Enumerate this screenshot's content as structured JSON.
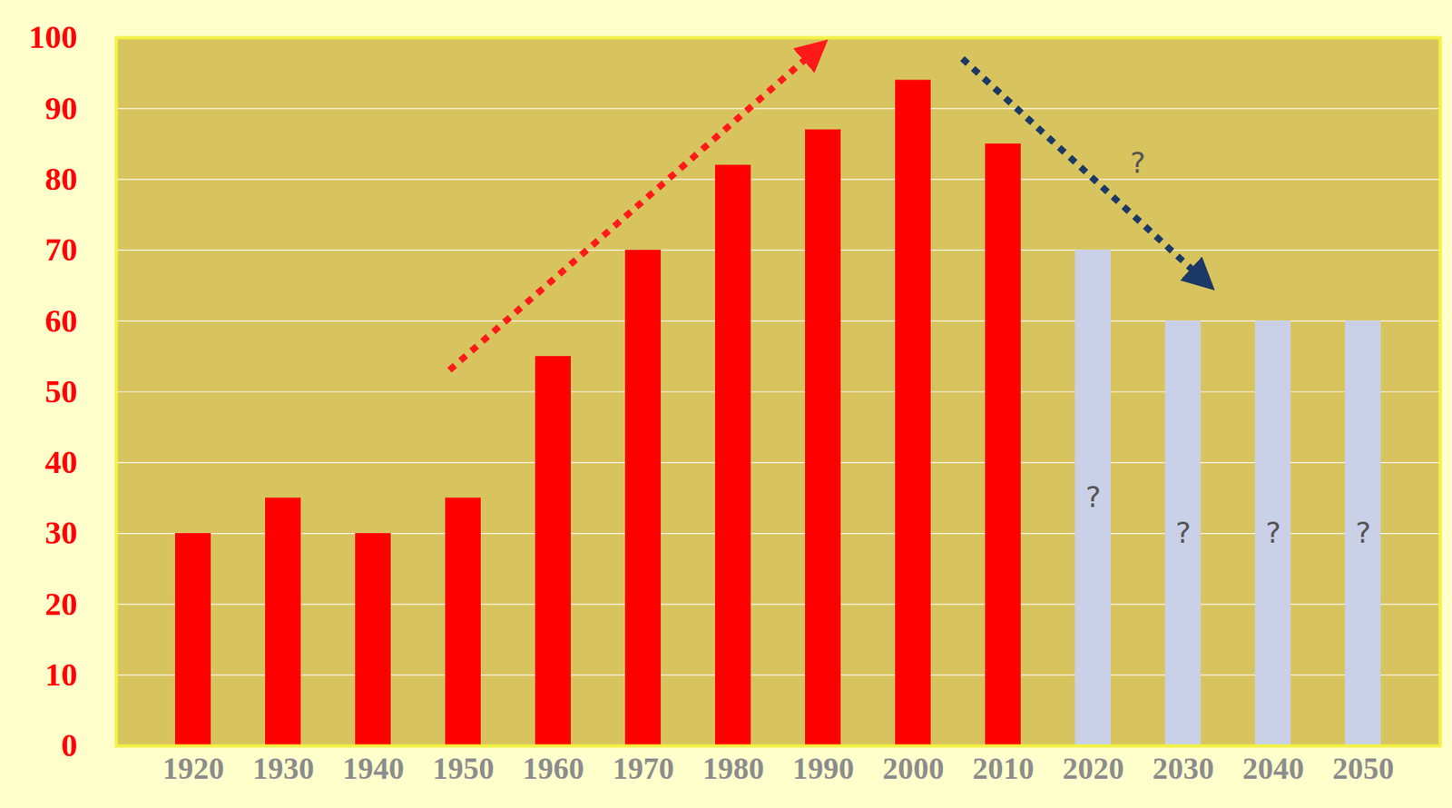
{
  "chart_data": {
    "type": "bar",
    "categories": [
      "1920",
      "1930",
      "1940",
      "1950",
      "1960",
      "1970",
      "1980",
      "1990",
      "2000",
      "2010",
      "2020",
      "2030",
      "2040",
      "2050"
    ],
    "values": [
      30,
      35,
      30,
      35,
      55,
      70,
      82,
      87,
      94,
      85,
      70,
      60,
      60,
      60
    ],
    "colors": [
      "#ff0000",
      "#ff0000",
      "#ff0000",
      "#ff0000",
      "#ff0000",
      "#ff0000",
      "#ff0000",
      "#ff0000",
      "#ff0000",
      "#ff0000",
      "#c9d0e8",
      "#c9d0e8",
      "#c9d0e8",
      "#c9d0e8"
    ],
    "data_labels": true,
    "value_labels": [
      null,
      null,
      null,
      null,
      null,
      null,
      null,
      null,
      null,
      null,
      "?",
      "?",
      "?",
      "?"
    ],
    "annotations": [
      {
        "text": "?"
      }
    ],
    "ylim": [
      0,
      100
    ],
    "yticks": [
      0,
      10,
      20,
      30,
      40,
      50,
      60,
      70,
      80,
      90,
      100
    ],
    "grid": true
  }
}
